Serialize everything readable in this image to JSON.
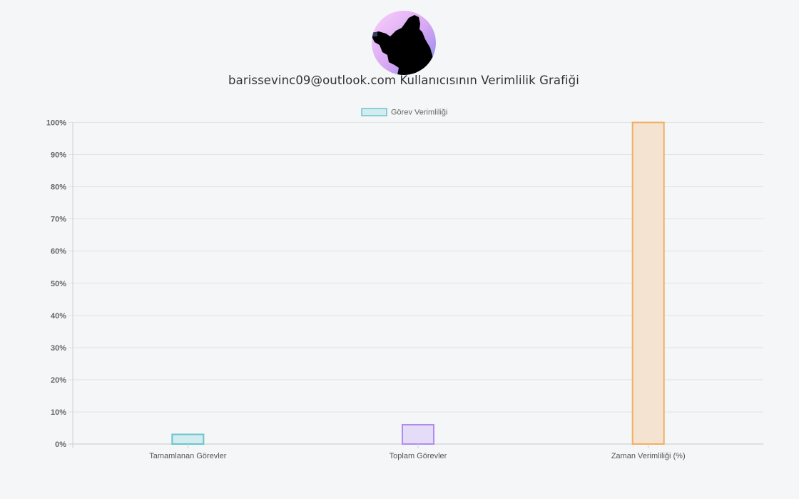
{
  "profile": {
    "avatar_icon": "user-photographer-silhouette",
    "title": "barissevinc09@outlook.com Kullanıcısının Verimlilik Grafiği"
  },
  "chart_data": {
    "type": "bar",
    "categories": [
      "Tamamlanan Görevler",
      "Toplam Görevler",
      "Zaman Verimliliği (%)"
    ],
    "series": [
      {
        "name": "Görev Verimliliği",
        "values": [
          3,
          6,
          100
        ],
        "fill_colors": [
          "#d3ecef",
          "#e5dcf7",
          "#f5e3d2"
        ],
        "border_colors": [
          "#6cc4cc",
          "#b08cf0",
          "#f2ae60"
        ]
      }
    ],
    "y_ticks": [
      "0%",
      "10%",
      "20%",
      "30%",
      "40%",
      "50%",
      "60%",
      "70%",
      "80%",
      "90%",
      "100%"
    ],
    "ylim": [
      0,
      100
    ],
    "grid": true,
    "legend_position": "top-center",
    "legend_fill": "#d3ecef",
    "legend_border": "#6cc4cc"
  }
}
